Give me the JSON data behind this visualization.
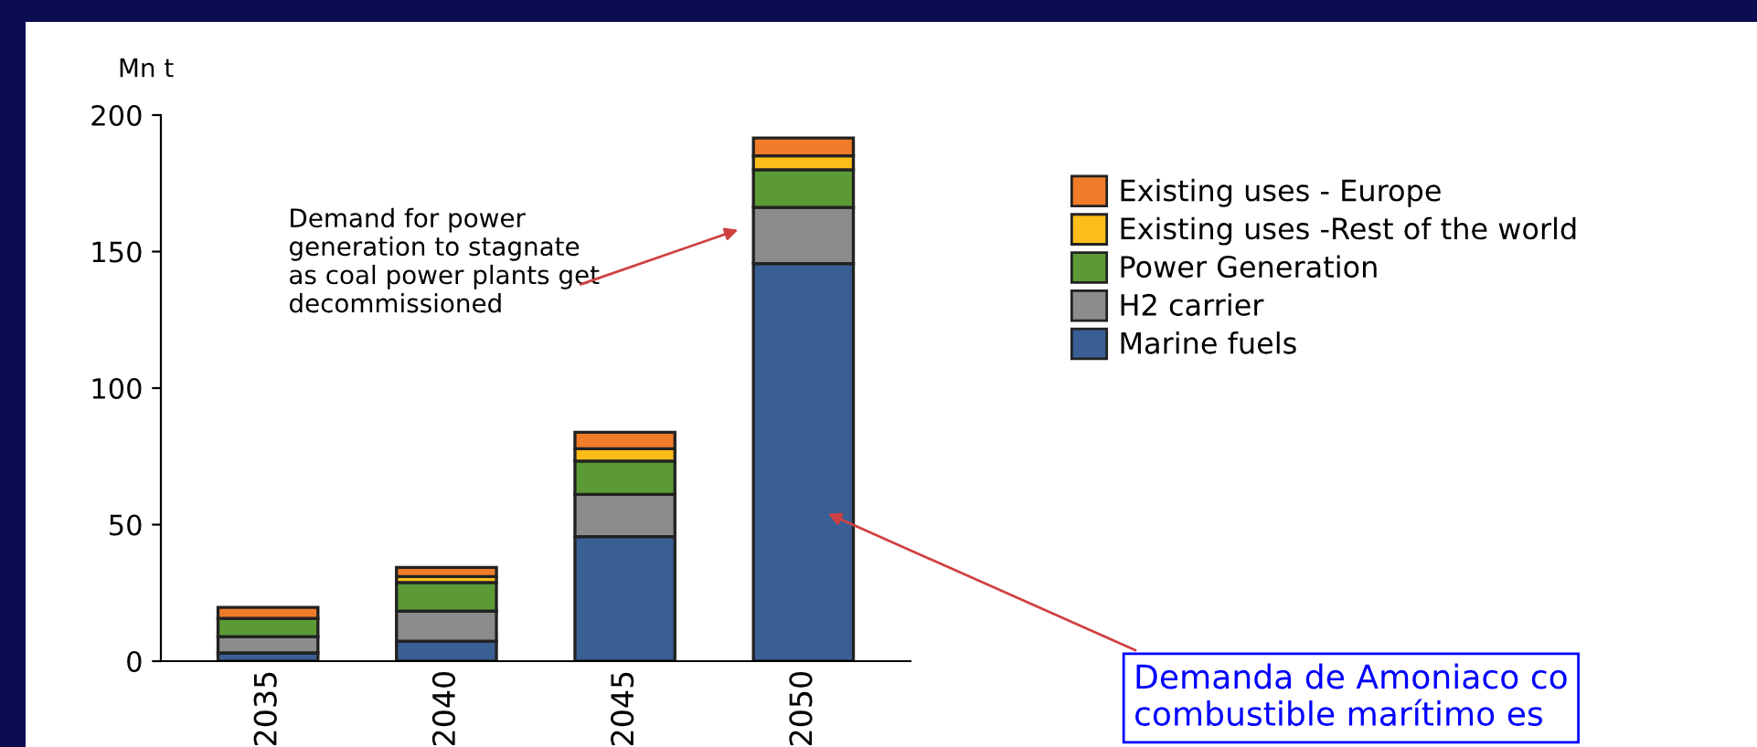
{
  "chart_data": {
    "type": "bar",
    "stacked": true,
    "ylabel": "Mn t",
    "categories": [
      "2035",
      "2040",
      "2045",
      "2050"
    ],
    "series": [
      {
        "name": "Marine fuels",
        "color": "#3a5f95",
        "values": [
          3,
          7.3,
          45.6,
          145.6
        ]
      },
      {
        "name": "H2 carrier",
        "color": "#8c8c8c",
        "values": [
          6,
          11,
          15.5,
          20.6
        ]
      },
      {
        "name": "Power Generation",
        "color": "#5b9a35",
        "values": [
          6.7,
          10.5,
          12.2,
          13.8
        ]
      },
      {
        "name": "Existing uses -Rest of the world",
        "color": "#fbbd1a",
        "values": [
          0,
          2.2,
          4.5,
          5.1
        ]
      },
      {
        "name": "Existing uses - Europe",
        "color": "#f07c2a",
        "values": [
          4,
          3.3,
          6,
          6.5
        ]
      }
    ],
    "ylim": [
      0,
      200
    ],
    "yticks": [
      0,
      50,
      100,
      150,
      200
    ],
    "grid": false,
    "legend": "right",
    "annotations": [
      "Demand for power\ngeneration to stagnate\nas coal power plants get\ndecommissioned",
      "Demanda de Amoniaco co\ncombustible marítimo es"
    ]
  }
}
